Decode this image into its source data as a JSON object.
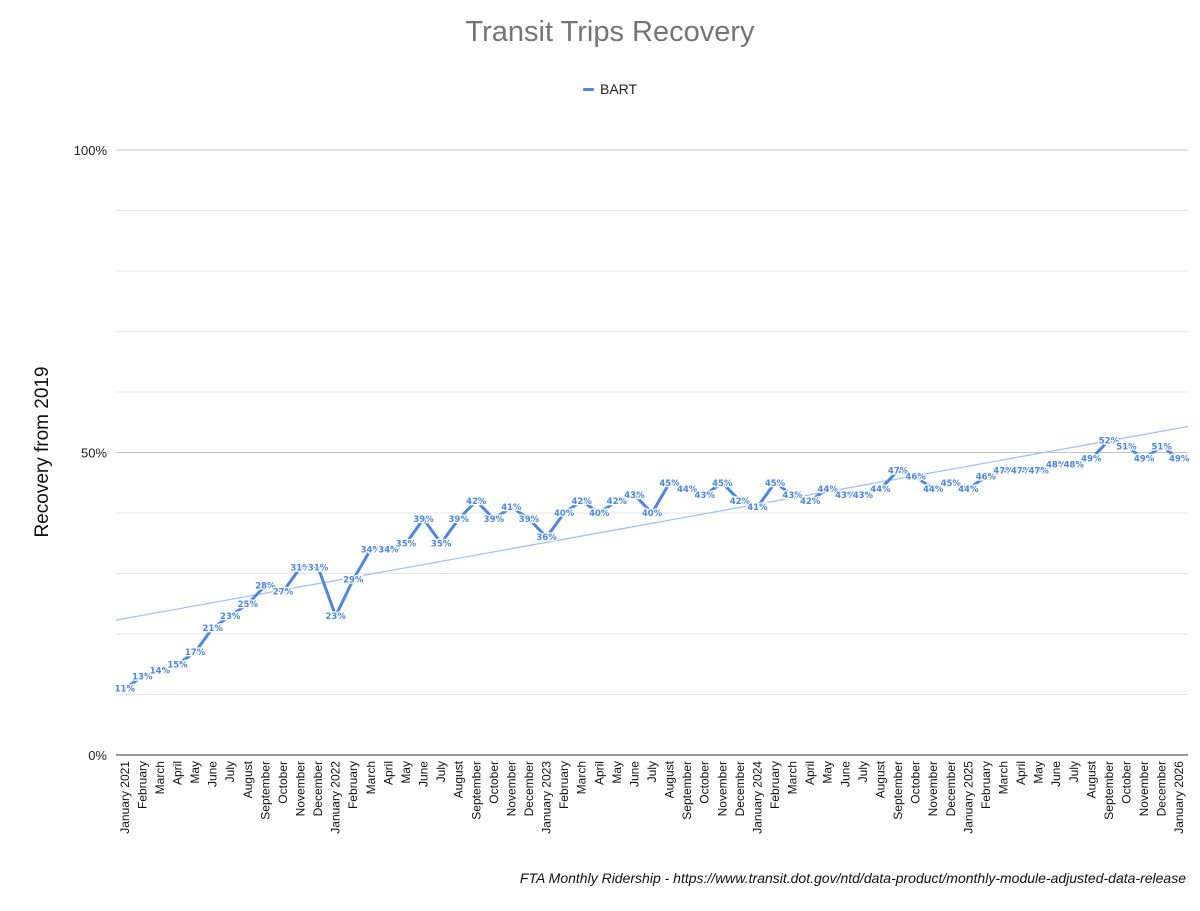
{
  "chart_data": {
    "type": "line",
    "title": "Transit Trips Recovery",
    "ylabel": "Recovery from 2019",
    "xlabel": "",
    "ylim": [
      0,
      100
    ],
    "yticks": [
      "0%",
      "50%",
      "100%"
    ],
    "grid": true,
    "legend_position": "top-center",
    "categories": [
      "January 2021",
      "February",
      "March",
      "April",
      "May",
      "June",
      "July",
      "August",
      "September",
      "October",
      "November",
      "December",
      "January 2022",
      "February",
      "March",
      "April",
      "May",
      "June",
      "July",
      "August",
      "September",
      "October",
      "November",
      "December",
      "January 2023",
      "February",
      "March",
      "April",
      "May",
      "June",
      "July",
      "August",
      "September",
      "October",
      "November",
      "December",
      "January 2024",
      "February",
      "March",
      "April",
      "May",
      "June",
      "July",
      "August",
      "September",
      "October",
      "November",
      "December",
      "January 2025",
      "February",
      "March",
      "April",
      "May",
      "June",
      "July",
      "August",
      "September",
      "October",
      "November",
      "December",
      "January 2026"
    ],
    "series": [
      {
        "name": "BART",
        "color": "#4a86e8",
        "values": [
          11,
          13,
          14,
          15,
          17,
          21,
          23,
          25,
          28,
          27,
          31,
          31,
          23,
          29,
          34,
          34,
          35,
          39,
          35,
          39,
          42,
          39,
          41,
          39,
          36,
          40,
          42,
          40,
          42,
          43,
          40,
          45,
          44,
          43,
          45,
          42,
          41,
          45,
          43,
          42,
          44,
          43,
          43,
          44,
          47,
          46,
          44,
          45,
          44,
          46,
          47,
          47,
          47,
          48,
          48,
          49,
          52,
          51,
          49,
          51,
          49
        ],
        "labels": [
          "11%",
          "13%",
          "14%",
          "15%",
          "17%",
          "21%",
          "23%",
          "25%",
          "28%",
          "27%",
          "31%",
          "31%",
          "23%",
          "29%",
          "34%",
          "34%",
          "35%",
          "39%",
          "35%",
          "39%",
          "42%",
          "39%",
          "41%",
          "39%",
          "36%",
          "40%",
          "42%",
          "40%",
          "42%",
          "43%",
          "40%",
          "45%",
          "44%",
          "43%",
          "45%",
          "42%",
          "41%",
          "45%",
          "43%",
          "42%",
          "44%",
          "43%",
          "43%",
          "44%",
          "47%",
          "46%",
          "44%",
          "45%",
          "44%",
          "46%",
          "47%",
          "47%",
          "47%",
          "48%",
          "48%",
          "49%",
          "52%",
          "51%",
          "49%",
          "51%",
          "49%"
        ]
      }
    ],
    "trendline": {
      "color": "#a4c2f4",
      "start": 22.3,
      "end": 54.3
    }
  },
  "source_note": "FTA Monthly Ridership - https://www.transit.dot.gov/ntd/data-product/monthly-module-adjusted-data-release"
}
